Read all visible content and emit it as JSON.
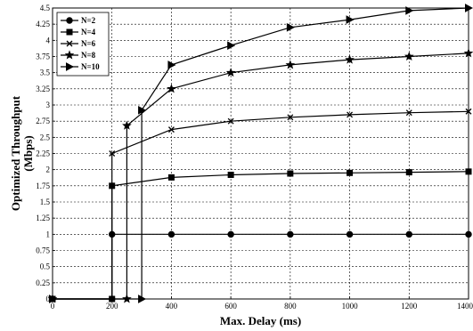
{
  "chart_data": {
    "type": "line",
    "xlabel": "Max. Delay (ms)",
    "ylabel_lines": [
      "Optimized Throughput",
      "(Mbps)"
    ],
    "xlim": [
      0,
      1400
    ],
    "ylim": [
      0,
      4.5
    ],
    "xticks": [
      "0",
      "200",
      "400",
      "600",
      "800",
      "1000",
      "1200",
      "1400"
    ],
    "yticks": [
      "0",
      "0.25",
      "0.5",
      "0.75",
      "1",
      "1.25",
      "1.5",
      "1.75",
      "2",
      "2.25",
      "2.5",
      "2.75",
      "3",
      "3.25",
      "3.5",
      "3.75",
      "4",
      "4.25",
      "4.5"
    ],
    "grid": true,
    "legend_position": "top-left",
    "series": [
      {
        "name": "N=2",
        "marker": "circle",
        "points": [
          [
            0,
            0
          ],
          [
            200,
            0
          ],
          [
            200,
            1
          ],
          [
            400,
            1
          ],
          [
            600,
            1
          ],
          [
            800,
            1
          ],
          [
            1000,
            1
          ],
          [
            1200,
            1
          ],
          [
            1400,
            1
          ]
        ]
      },
      {
        "name": "N=4",
        "marker": "square",
        "points": [
          [
            0,
            0
          ],
          [
            200,
            0
          ],
          [
            200,
            1.75
          ],
          [
            400,
            1.88
          ],
          [
            600,
            1.92
          ],
          [
            800,
            1.94
          ],
          [
            1000,
            1.95
          ],
          [
            1200,
            1.96
          ],
          [
            1400,
            1.97
          ]
        ]
      },
      {
        "name": "N=6",
        "marker": "x",
        "points": [
          [
            0,
            0
          ],
          [
            200,
            0
          ],
          [
            200,
            2.25
          ],
          [
            400,
            2.62
          ],
          [
            600,
            2.75
          ],
          [
            800,
            2.81
          ],
          [
            1000,
            2.85
          ],
          [
            1200,
            2.88
          ],
          [
            1400,
            2.9
          ]
        ]
      },
      {
        "name": "N=8",
        "marker": "star",
        "points": [
          [
            0,
            0
          ],
          [
            250,
            0
          ],
          [
            250,
            2.68
          ],
          [
            400,
            3.25
          ],
          [
            600,
            3.5
          ],
          [
            800,
            3.62
          ],
          [
            1000,
            3.7
          ],
          [
            1200,
            3.75
          ],
          [
            1400,
            3.8
          ]
        ]
      },
      {
        "name": "N=10",
        "marker": "triangle-right",
        "points": [
          [
            0,
            0
          ],
          [
            300,
            0
          ],
          [
            300,
            2.92
          ],
          [
            400,
            3.62
          ],
          [
            600,
            3.92
          ],
          [
            800,
            4.2
          ],
          [
            1000,
            4.32
          ],
          [
            1200,
            4.46
          ],
          [
            1400,
            4.5
          ]
        ]
      }
    ]
  }
}
